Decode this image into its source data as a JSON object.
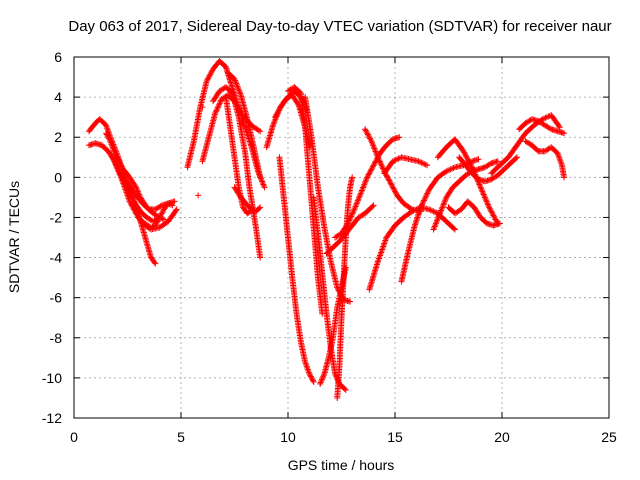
{
  "chart_data": {
    "type": "scatter",
    "title": "Day 063 of 2017, Sidereal Day-to-day VTEC variation (SDTVAR) for receiver naur",
    "xlabel": "GPS time / hours",
    "ylabel": "SDTVAR / TECUs",
    "xlim": [
      0,
      25
    ],
    "ylim": [
      -12,
      6
    ],
    "xticks": [
      "0",
      "5",
      "10",
      "15",
      "20",
      "25"
    ],
    "yticks": [
      "-12",
      "-10",
      "-8",
      "-6",
      "-4",
      "-2",
      "0",
      "2",
      "4",
      "6"
    ],
    "grid": true,
    "legend": "none",
    "marker": "+",
    "color": "#ff0000",
    "series": [
      {
        "x": [
          0.7,
          1.0,
          1.2,
          1.5,
          1.7,
          2.0,
          2.3,
          2.6,
          3.0,
          3.3,
          3.6,
          3.8
        ],
        "y": [
          2.3,
          2.7,
          2.9,
          2.6,
          2.0,
          1.2,
          0.3,
          -0.6,
          -1.8,
          -2.9,
          -4.0,
          -4.3
        ]
      },
      {
        "x": [
          0.7,
          1.0,
          1.3,
          1.6,
          1.9,
          2.2,
          2.5,
          2.8,
          3.1,
          3.4,
          3.7,
          4.0
        ],
        "y": [
          1.6,
          1.7,
          1.6,
          1.3,
          0.8,
          0.1,
          -0.6,
          -1.2,
          -1.7,
          -2.0,
          -2.2,
          -2.0
        ]
      },
      {
        "x": [
          1.5,
          1.7,
          1.9,
          2.1,
          2.3,
          2.6,
          2.9,
          3.1,
          3.4,
          3.7,
          4.0,
          4.2
        ],
        "y": [
          2.2,
          1.8,
          1.2,
          0.8,
          0.4,
          0.0,
          -0.5,
          -1.0,
          -1.5,
          -1.8,
          -2.0,
          -2.1
        ]
      },
      {
        "x": [
          1.8,
          2.0,
          2.2,
          2.4,
          2.6,
          2.9,
          3.2,
          3.6,
          4.0,
          4.4,
          4.8
        ],
        "y": [
          1.0,
          0.5,
          0.0,
          -0.6,
          -1.2,
          -1.8,
          -2.3,
          -2.6,
          -2.5,
          -2.2,
          -1.6
        ]
      },
      {
        "x": [
          2.3,
          2.6,
          2.9,
          3.2,
          3.5,
          3.8,
          4.1,
          4.4,
          4.7
        ],
        "y": [
          0.0,
          -0.4,
          -0.9,
          -1.3,
          -1.6,
          -1.6,
          -1.4,
          -1.3,
          -1.2
        ]
      },
      {
        "x": [
          3.0,
          3.3,
          3.6,
          3.8,
          4.0,
          4.2,
          4.4,
          4.6
        ],
        "y": [
          -2.0,
          -2.3,
          -2.5,
          -2.4,
          -2.0,
          -1.6,
          -1.3,
          -1.4
        ]
      },
      {
        "x": [
          5.3,
          5.6,
          5.9,
          6.2,
          6.5,
          6.8,
          7.1,
          7.3,
          7.6,
          7.9,
          8.3,
          8.6,
          8.9
        ],
        "y": [
          0.5,
          1.8,
          3.5,
          4.8,
          5.4,
          5.8,
          5.5,
          4.8,
          3.8,
          2.8,
          1.5,
          0.3,
          -0.5
        ]
      },
      {
        "x": [
          6.0,
          6.3,
          6.6,
          6.9,
          7.2,
          7.5,
          7.8,
          8.1,
          8.4,
          8.7
        ],
        "y": [
          0.8,
          2.0,
          3.2,
          3.9,
          4.1,
          3.8,
          3.2,
          2.8,
          2.5,
          2.3
        ]
      },
      {
        "x": [
          6.5,
          6.8,
          7.1,
          7.4,
          7.7,
          8.0,
          8.2,
          8.5,
          8.7
        ],
        "y": [
          3.8,
          4.3,
          4.5,
          4.2,
          3.0,
          1.2,
          -0.5,
          -2.5,
          -4.0
        ]
      },
      {
        "x": [
          7.2,
          7.5,
          7.8,
          8.1,
          8.4,
          8.7
        ],
        "y": [
          5.2,
          4.9,
          4.1,
          2.9,
          1.5,
          0.0
        ]
      },
      {
        "x": [
          7.1,
          7.3,
          7.5,
          7.7,
          7.9,
          8.1,
          8.4
        ],
        "y": [
          4.0,
          2.5,
          1.0,
          -0.5,
          -1.5,
          -1.8,
          -1.6
        ]
      },
      {
        "x": [
          7.5,
          7.8,
          8.1,
          8.3,
          8.5,
          8.7
        ],
        "y": [
          -0.5,
          -1.0,
          -1.4,
          -1.6,
          -1.7,
          -1.5
        ]
      },
      {
        "x": [
          9.0,
          9.3,
          9.6,
          9.9,
          10.2,
          10.5,
          10.8,
          11.0
        ],
        "y": [
          1.5,
          2.6,
          3.4,
          3.9,
          4.1,
          3.6,
          2.5,
          1.5
        ]
      },
      {
        "x": [
          9.4,
          9.7,
          10.0,
          10.3,
          10.6,
          10.9
        ],
        "y": [
          3.0,
          3.6,
          4.0,
          4.3,
          4.0,
          3.3
        ]
      },
      {
        "x": [
          10.0,
          10.3,
          10.6,
          10.8,
          11.0,
          11.2,
          11.4,
          11.6
        ],
        "y": [
          4.3,
          4.5,
          4.2,
          2.5,
          0.0,
          -2.5,
          -5.0,
          -6.8
        ]
      },
      {
        "x": [
          9.6,
          9.8,
          10.0,
          10.2,
          10.4,
          10.6,
          10.8,
          11.0,
          11.2
        ],
        "y": [
          1.0,
          -1.0,
          -3.0,
          -5.0,
          -6.8,
          -8.2,
          -9.2,
          -9.8,
          -10.2
        ]
      },
      {
        "x": [
          10.8,
          11.1,
          11.4,
          11.7,
          12.0,
          12.3,
          12.6,
          12.9
        ],
        "y": [
          4.0,
          2.0,
          -0.5,
          -2.5,
          -4.2,
          -5.5,
          -6.1,
          -6.2
        ]
      },
      {
        "x": [
          11.2,
          11.4,
          11.6,
          11.8,
          12.0,
          12.2,
          12.4,
          12.7
        ],
        "y": [
          -1.0,
          -2.8,
          -4.8,
          -6.8,
          -8.5,
          -9.8,
          -10.3,
          -10.6
        ]
      },
      {
        "x": [
          11.5,
          11.7,
          11.9,
          12.1,
          12.3,
          12.5,
          12.7
        ],
        "y": [
          -10.3,
          -9.8,
          -9.0,
          -8.0,
          -6.5,
          -5.5,
          -4.5
        ]
      },
      {
        "x": [
          12.3,
          12.4,
          12.5,
          12.6,
          12.7,
          12.8,
          12.9,
          13.0
        ],
        "y": [
          -11.0,
          -9.5,
          -7.0,
          -5.0,
          -3.0,
          -1.5,
          -0.5,
          0.0
        ]
      },
      {
        "x": [
          11.8,
          12.1,
          12.4,
          12.7,
          13.0,
          13.3,
          13.6,
          13.8,
          14.0
        ],
        "y": [
          -3.8,
          -3.5,
          -3.2,
          -2.8,
          -2.4,
          -2.0,
          -1.8,
          -1.6,
          -1.4
        ]
      },
      {
        "x": [
          12.2,
          12.5,
          12.8,
          13.1,
          13.4,
          13.7,
          14.0,
          14.3,
          14.6,
          14.9,
          15.2
        ],
        "y": [
          -3.0,
          -2.8,
          -2.3,
          -1.6,
          -0.8,
          0.0,
          0.6,
          1.2,
          1.6,
          1.9,
          2.0
        ]
      },
      {
        "x": [
          13.6,
          13.9,
          14.2,
          14.5,
          14.8,
          15.1,
          15.4,
          15.8,
          16.2
        ],
        "y": [
          2.4,
          1.8,
          1.0,
          0.3,
          -0.3,
          -0.9,
          -1.3,
          -1.6,
          -1.7
        ]
      },
      {
        "x": [
          13.8,
          14.2,
          14.6,
          15.0,
          15.4,
          15.8,
          16.2,
          16.6,
          17.0,
          17.4,
          17.8
        ],
        "y": [
          -5.6,
          -4.2,
          -3.0,
          -2.4,
          -2.0,
          -1.7,
          -1.5,
          -1.6,
          -1.8,
          -2.2,
          -2.6
        ]
      },
      {
        "x": [
          15.3,
          15.6,
          15.9,
          16.2,
          16.6,
          17.0,
          17.4,
          17.8,
          18.2,
          18.6,
          18.9
        ],
        "y": [
          -5.2,
          -3.8,
          -2.5,
          -1.5,
          -0.6,
          0.0,
          0.3,
          0.5,
          0.6,
          0.8,
          0.9
        ]
      },
      {
        "x": [
          14.5,
          14.9,
          15.3,
          15.7,
          16.1,
          16.5
        ],
        "y": [
          0.2,
          0.8,
          1.0,
          0.9,
          0.8,
          0.6
        ]
      },
      {
        "x": [
          16.8,
          17.1,
          17.4,
          17.7,
          18.0,
          18.3,
          18.6,
          18.9,
          19.2,
          19.5,
          19.8
        ],
        "y": [
          -2.6,
          -1.8,
          -1.0,
          -0.5,
          -0.2,
          0.1,
          0.3,
          0.4,
          0.5,
          0.7,
          0.8
        ]
      },
      {
        "x": [
          17.0,
          17.4,
          17.8,
          18.2,
          18.6,
          19.0,
          19.4,
          19.8
        ],
        "y": [
          1.0,
          1.5,
          1.9,
          1.3,
          0.5,
          -0.5,
          -1.5,
          -2.3
        ]
      },
      {
        "x": [
          17.5,
          17.8,
          18.1,
          18.4,
          18.7,
          19.0,
          19.3,
          19.6,
          19.9
        ],
        "y": [
          -1.5,
          -1.8,
          -1.6,
          -1.2,
          -1.5,
          -2.0,
          -2.3,
          -2.4,
          -2.3
        ]
      },
      {
        "x": [
          18.0,
          18.3,
          18.6,
          18.9,
          19.2,
          19.5,
          19.8,
          20.1,
          20.4,
          20.7
        ],
        "y": [
          1.0,
          0.6,
          0.2,
          -0.1,
          -0.2,
          -0.1,
          0.1,
          0.4,
          0.7,
          1.0
        ]
      },
      {
        "x": [
          19.5,
          19.9,
          20.3,
          20.7,
          21.1,
          21.5,
          21.9,
          22.3,
          22.7
        ],
        "y": [
          0.2,
          0.6,
          1.0,
          1.6,
          2.2,
          2.6,
          2.9,
          3.1,
          2.5
        ]
      },
      {
        "x": [
          20.8,
          21.1,
          21.4,
          21.7,
          22.0,
          22.3,
          22.6,
          22.9
        ],
        "y": [
          2.4,
          2.7,
          2.9,
          2.8,
          2.6,
          2.4,
          2.3,
          2.2
        ]
      },
      {
        "x": [
          21.1,
          21.4,
          21.7,
          22.0,
          22.3,
          22.6,
          22.8,
          22.9
        ],
        "y": [
          1.8,
          1.6,
          1.3,
          1.3,
          1.5,
          1.2,
          0.6,
          0.0
        ]
      },
      {
        "x": [
          5.8
        ],
        "y": [
          -0.9
        ]
      },
      {
        "x": [
          6.0
        ],
        "y": [
          3.5
        ]
      },
      {
        "x": [
          8.3
        ],
        "y": [
          1.6
        ]
      }
    ]
  }
}
